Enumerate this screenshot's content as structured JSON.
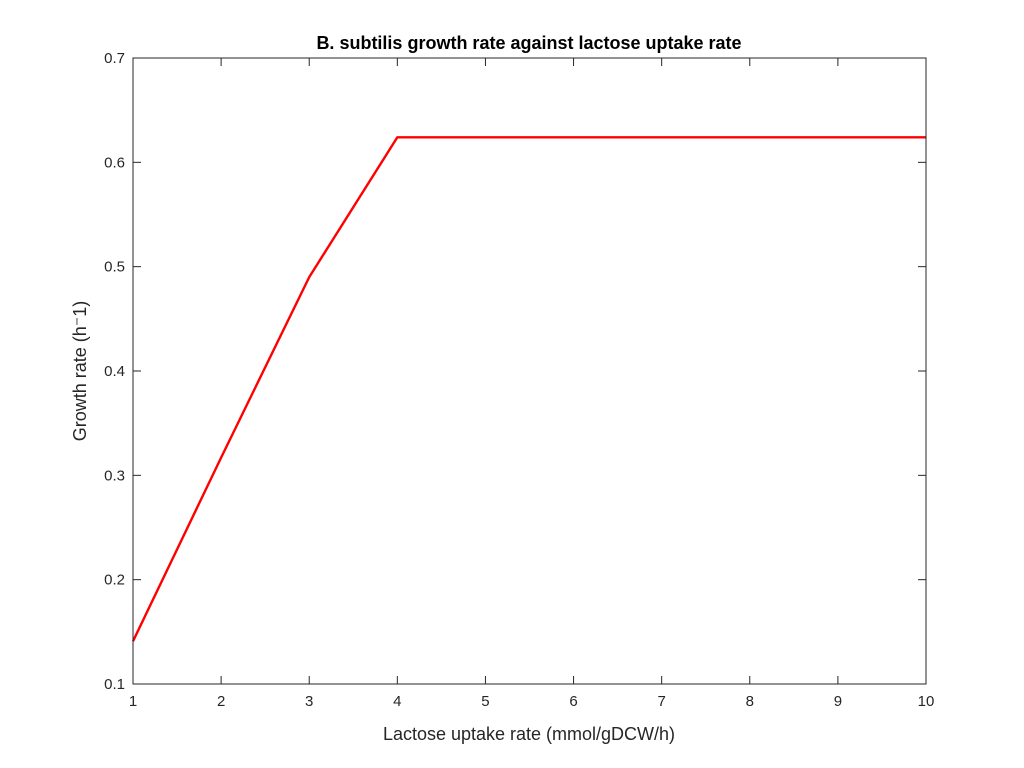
{
  "chart_data": {
    "type": "line",
    "title": "B. subtilis growth rate against lactose uptake rate",
    "xlabel": "Lactose uptake rate (mmol/gDCW/h)",
    "ylabel": "Growth rate (h⁻1)",
    "xlim": [
      1,
      10
    ],
    "ylim": [
      0.1,
      0.7
    ],
    "xticks": [
      1,
      2,
      3,
      4,
      5,
      6,
      7,
      8,
      9,
      10
    ],
    "yticks": [
      0.1,
      0.2,
      0.3,
      0.4,
      0.5,
      0.6,
      0.7
    ],
    "xtick_labels": [
      "1",
      "2",
      "3",
      "4",
      "5",
      "6",
      "7",
      "8",
      "9",
      "10"
    ],
    "ytick_labels": [
      "0.1",
      "0.2",
      "0.3",
      "0.4",
      "0.5",
      "0.6",
      "0.7"
    ],
    "grid": false,
    "legend": "none",
    "series": [
      {
        "color": "#ff0000",
        "x": [
          1,
          2,
          3,
          4,
          5,
          6,
          7,
          8,
          9,
          10
        ],
        "y": [
          0.141,
          0.317,
          0.49,
          0.624,
          0.624,
          0.624,
          0.624,
          0.624,
          0.624,
          0.624
        ]
      }
    ]
  }
}
